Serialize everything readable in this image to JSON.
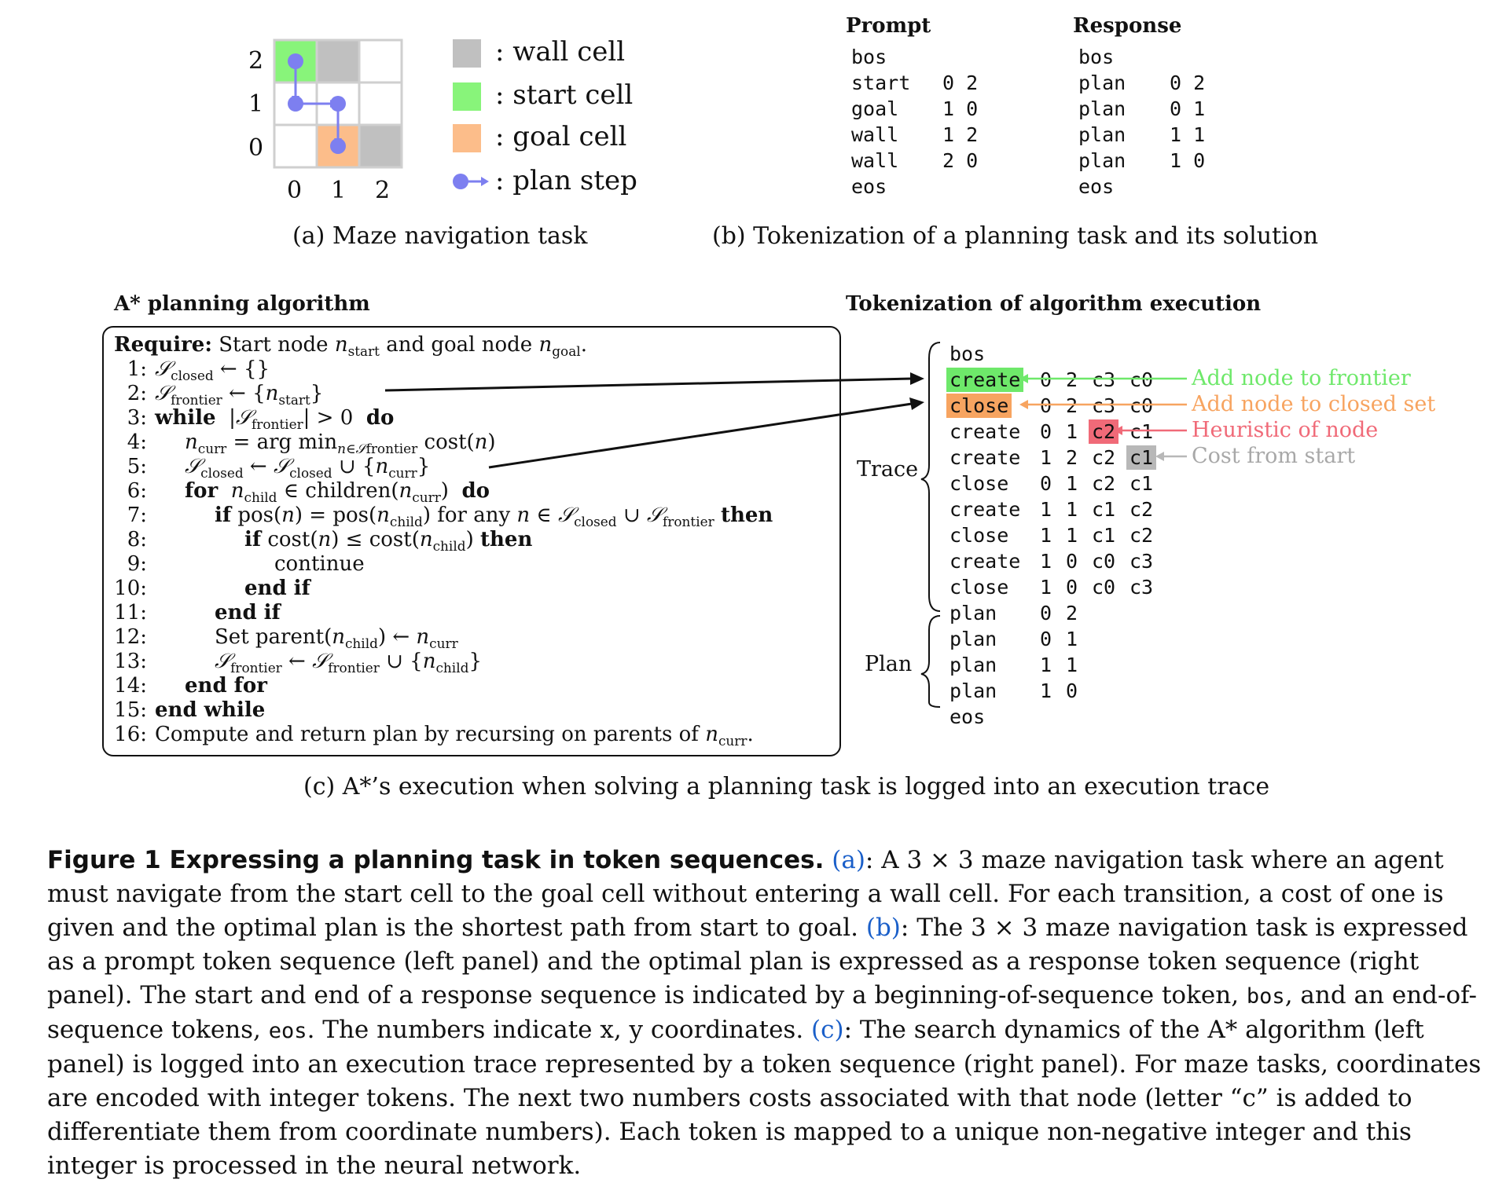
{
  "colors": {
    "wall": "#c0c0c0",
    "start": "#88f47a",
    "goal": "#fcbd8a",
    "plan_step": "#7d7ff0",
    "frontier": "#6ee86a",
    "closed": "#f7a460",
    "heuristic": "#f06a78",
    "cost": "#b8b8b8",
    "link": "#1a5fc9"
  },
  "panel_a": {
    "y_labels": [
      "2",
      "1",
      "0"
    ],
    "x_labels": [
      "0",
      "1",
      "2"
    ],
    "legend": [
      {
        "icon": "wall-swatch",
        "label": ": wall cell"
      },
      {
        "icon": "start-swatch",
        "label": ": start cell"
      },
      {
        "icon": "goal-swatch",
        "label": ": goal cell"
      },
      {
        "icon": "plan-step-icon",
        "label": ": plan step"
      }
    ],
    "caption": "(a)  Maze navigation task"
  },
  "panel_b": {
    "prompt_title": "Prompt",
    "response_title": "Response",
    "prompt_lines": [
      [
        "bos",
        ""
      ],
      [
        "start",
        "0 2"
      ],
      [
        "goal",
        "1 0"
      ],
      [
        "wall",
        "1 2"
      ],
      [
        "wall",
        "2 0"
      ],
      [
        "eos",
        ""
      ]
    ],
    "response_lines": [
      [
        "bos",
        ""
      ],
      [
        "plan",
        "0 2"
      ],
      [
        "plan",
        "0 1"
      ],
      [
        "plan",
        "1 1"
      ],
      [
        "plan",
        "1 0"
      ],
      [
        "eos",
        ""
      ]
    ],
    "caption": "(b)  Tokenization of a planning task and its solution"
  },
  "panel_c": {
    "algo_title": "A* planning algorithm",
    "token_title": "Tokenization of algorithm execution",
    "require": "Require:",
    "lines": [
      {
        "n": "1:",
        "text": "S_closed ← {}"
      },
      {
        "n": "2:",
        "text": "S_frontier ← {n_start}"
      },
      {
        "n": "3:",
        "text": "while |S_frontier| > 0 do"
      },
      {
        "n": "4:",
        "text": "n_curr = arg min cost(n)"
      },
      {
        "n": "5:",
        "text": "S_closed ← S_closed ∪ {n_curr}"
      },
      {
        "n": "6:",
        "text": "for n_child ∈ children(n_curr) do"
      },
      {
        "n": "7:",
        "text": "if pos(n) = pos(n_child) for any n ∈ S_closed ∪ S_frontier then"
      },
      {
        "n": "8:",
        "text": "if cost(n) ≤ cost(n_child) then"
      },
      {
        "n": "9:",
        "text": "continue"
      },
      {
        "n": "10:",
        "text": "end if"
      },
      {
        "n": "11:",
        "text": "end if"
      },
      {
        "n": "12:",
        "text": "Set parent(n_child) ← n_curr"
      },
      {
        "n": "13:",
        "text": "S_frontier ← S_frontier ∪ {n_child}"
      },
      {
        "n": "14:",
        "text": "end for"
      },
      {
        "n": "15:",
        "text": "end while"
      },
      {
        "n": "16:",
        "text": "Compute and return plan by recursing on parents of n_curr."
      }
    ],
    "trace_label": "Trace",
    "plan_label": "Plan",
    "trace_rows": [
      [
        "bos",
        "",
        "",
        "",
        ""
      ],
      [
        "create",
        "0",
        "2",
        "c3",
        "c0"
      ],
      [
        "close",
        "0",
        "2",
        "c3",
        "c0"
      ],
      [
        "create",
        "0",
        "1",
        "c2",
        "c1"
      ],
      [
        "create",
        "1",
        "2",
        "c2",
        "c1"
      ],
      [
        "close",
        "0",
        "1",
        "c2",
        "c1"
      ],
      [
        "create",
        "1",
        "1",
        "c1",
        "c2"
      ],
      [
        "close",
        "1",
        "1",
        "c1",
        "c2"
      ],
      [
        "create",
        "1",
        "0",
        "c0",
        "c3"
      ],
      [
        "close",
        "1",
        "0",
        "c0",
        "c3"
      ]
    ],
    "plan_rows": [
      [
        "plan",
        "0",
        "2"
      ],
      [
        "plan",
        "0",
        "1"
      ],
      [
        "plan",
        "1",
        "1"
      ],
      [
        "plan",
        "1",
        "0"
      ],
      [
        "eos",
        "",
        ""
      ]
    ],
    "annotations": {
      "frontier": "Add node to frontier",
      "closed": "Add node to closed set",
      "heuristic": "Heuristic of node",
      "cost": "Cost from start"
    },
    "caption": "(c)  A*’s execution when solving a planning task is logged into an execution trace"
  },
  "figure_caption": {
    "label": "Figure 1  Expressing a planning task in token sequences.",
    "ref_a": "(a)",
    "text_a": ": A 3 × 3 maze navigation task where an agent must navigate from the start cell to the goal cell without entering a wall cell. For each transition, a cost of one is given and the optimal plan is the shortest path from start to goal. ",
    "ref_b": "(b)",
    "text_b1": ": The 3 × 3 maze navigation task is expressed as a prompt token sequence (left panel) and the optimal plan is expressed as a response token sequence (right panel). The start and end of a response sequence is indicated by a beginning-of-sequence token, ",
    "bos": "bos",
    "text_b2": ", and an end-of-sequence tokens, ",
    "eos": "eos",
    "text_b3": ". The numbers indicate x, y coordinates. ",
    "ref_c": "(c)",
    "text_c": ": The search dynamics of the A* algorithm (left panel) is logged into an execution trace represented by a token sequence (right panel). For maze tasks, coordinates are encoded with integer tokens. The next two numbers costs associated with that node (letter “c” is added to differentiate them from coordinate numbers). Each token is mapped to a unique non-negative integer and this integer is processed in the neural network."
  }
}
